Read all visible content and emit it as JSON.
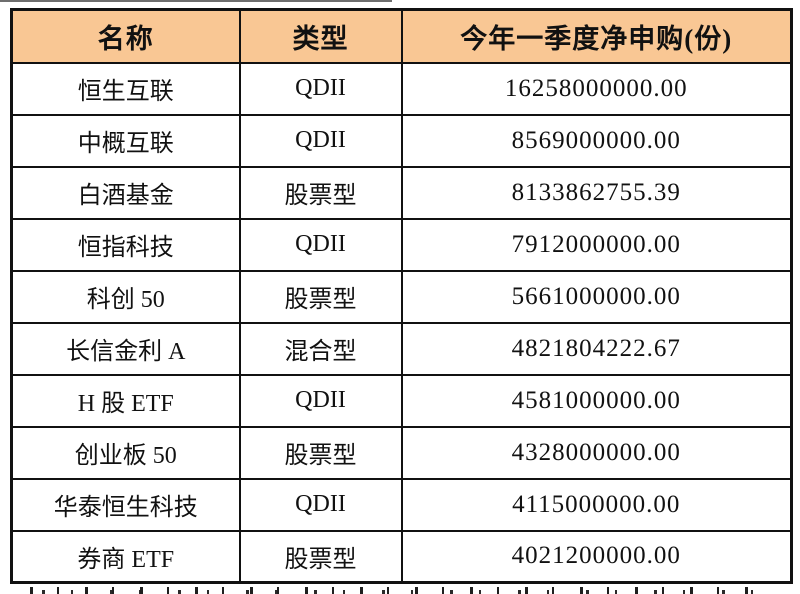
{
  "chart_data": {
    "type": "table",
    "columns": [
      "名称",
      "类型",
      "今年一季度净申购(份)"
    ],
    "rows": [
      [
        "恒生互联",
        "QDII",
        "16258000000.00"
      ],
      [
        "中概互联",
        "QDII",
        "8569000000.00"
      ],
      [
        "白酒基金",
        "股票型",
        "8133862755.39"
      ],
      [
        "恒指科技",
        "QDII",
        "7912000000.00"
      ],
      [
        "科创 50",
        "股票型",
        "5661000000.00"
      ],
      [
        "长信金利 A",
        "混合型",
        "4821804222.67"
      ],
      [
        "H 股 ETF",
        "QDII",
        "4581000000.00"
      ],
      [
        "创业板 50",
        "股票型",
        "4328000000.00"
      ],
      [
        "华泰恒生科技",
        "QDII",
        "4115000000.00"
      ],
      [
        "券商 ETF",
        "股票型",
        "4021200000.00"
      ]
    ],
    "header_bg": "#F9C794",
    "border_color": "#111111",
    "text_color": "#111111"
  }
}
